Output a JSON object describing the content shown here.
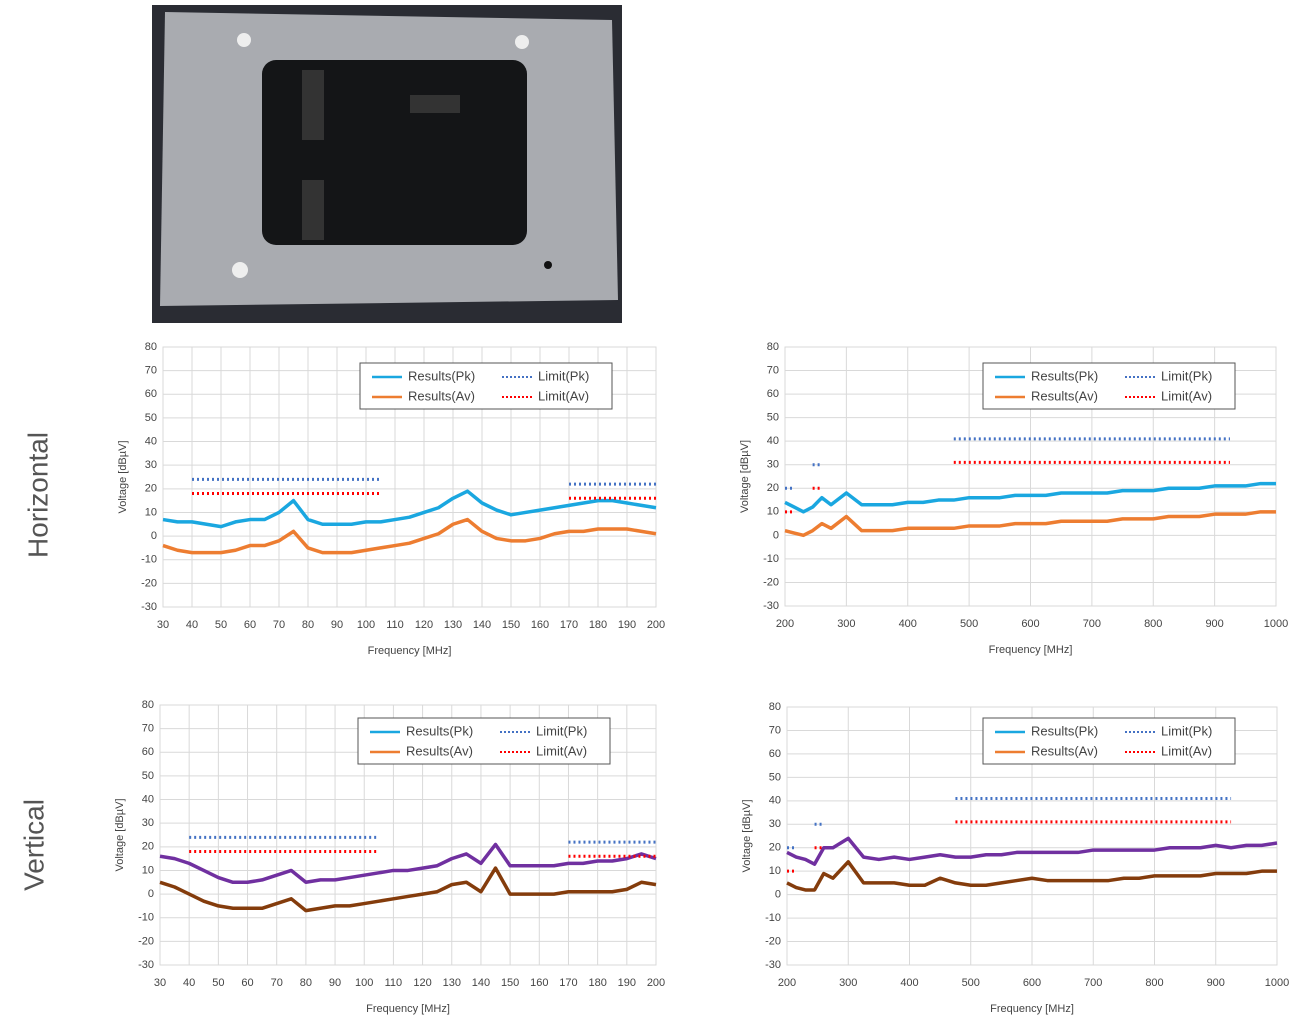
{
  "row_labels": [
    "Horizontal",
    "Vertical"
  ],
  "chart_data": [
    {
      "type": "line",
      "xlabel": "Frequency [MHz]",
      "ylabel": "Voltage [dBµV]",
      "grid": true,
      "xlim": [
        30,
        200
      ],
      "ylim": [
        -30,
        80
      ],
      "xticks": [
        30,
        40,
        50,
        60,
        70,
        80,
        90,
        100,
        110,
        120,
        130,
        140,
        150,
        160,
        170,
        180,
        190,
        200
      ],
      "yticks": [
        -30,
        -20,
        -10,
        0,
        10,
        20,
        30,
        40,
        50,
        60,
        70,
        80
      ],
      "x": [
        30,
        35,
        40,
        45,
        50,
        55,
        60,
        65,
        70,
        75,
        80,
        85,
        90,
        95,
        100,
        105,
        110,
        115,
        120,
        125,
        130,
        135,
        140,
        145,
        150,
        155,
        160,
        165,
        170,
        175,
        180,
        185,
        190,
        195,
        200
      ],
      "series": [
        {
          "name": "Results(Pk)",
          "color": "#1aa7e0",
          "legend_color": "#1aa7e0",
          "style": "solid",
          "values": [
            7,
            6,
            6,
            5,
            4,
            6,
            7,
            7,
            10,
            15,
            7,
            5,
            5,
            5,
            6,
            6,
            7,
            8,
            10,
            12,
            16,
            19,
            14,
            11,
            9,
            10,
            11,
            12,
            13,
            14,
            15,
            15,
            14,
            13,
            12
          ]
        },
        {
          "name": "Results(Av)",
          "color": "#ed7d31",
          "legend_color": "#ed7d31",
          "style": "solid",
          "values": [
            -4,
            -6,
            -7,
            -7,
            -7,
            -6,
            -4,
            -4,
            -2,
            2,
            -5,
            -7,
            -7,
            -7,
            -6,
            -5,
            -4,
            -3,
            -1,
            1,
            5,
            7,
            2,
            -1,
            -2,
            -2,
            -1,
            1,
            2,
            2,
            3,
            3,
            3,
            2,
            1
          ]
        },
        {
          "name": "Limit(Pk)",
          "color": "#4472c4",
          "legend_color": "#4472c4",
          "style": "dotted",
          "values": [
            null,
            null,
            24,
            24,
            24,
            24,
            24,
            24,
            24,
            24,
            24,
            24,
            24,
            24,
            24,
            24,
            null,
            null,
            null,
            null,
            null,
            null,
            null,
            null,
            null,
            null,
            null,
            null,
            22,
            22,
            22,
            22,
            22,
            22,
            22
          ]
        },
        {
          "name": "Limit(Av)",
          "color": "#ff0000",
          "legend_color": "#ff0000",
          "style": "dotted",
          "values": [
            null,
            null,
            18,
            18,
            18,
            18,
            18,
            18,
            18,
            18,
            18,
            18,
            18,
            18,
            18,
            18,
            null,
            null,
            null,
            null,
            null,
            null,
            null,
            null,
            null,
            null,
            null,
            null,
            16,
            16,
            16,
            16,
            16,
            16,
            16
          ]
        }
      ]
    },
    {
      "type": "line",
      "xlabel": "Frequency [MHz]",
      "ylabel": "Voltage [dBµV]",
      "grid": true,
      "xlim": [
        200,
        1000
      ],
      "ylim": [
        -30,
        80
      ],
      "xticks": [
        200,
        300,
        400,
        500,
        600,
        700,
        800,
        900,
        1000
      ],
      "yticks": [
        -30,
        -20,
        -10,
        0,
        10,
        20,
        30,
        40,
        50,
        60,
        70,
        80
      ],
      "x": [
        200,
        215,
        230,
        245,
        260,
        275,
        300,
        325,
        350,
        375,
        400,
        425,
        450,
        475,
        500,
        525,
        550,
        575,
        600,
        625,
        650,
        675,
        700,
        725,
        750,
        775,
        800,
        825,
        850,
        875,
        900,
        925,
        950,
        975,
        1000
      ],
      "series": [
        {
          "name": "Results(Pk)",
          "color": "#1aa7e0",
          "legend_color": "#1aa7e0",
          "style": "solid",
          "values": [
            14,
            12,
            10,
            12,
            16,
            13,
            18,
            13,
            13,
            13,
            14,
            14,
            15,
            15,
            16,
            16,
            16,
            17,
            17,
            17,
            18,
            18,
            18,
            18,
            19,
            19,
            19,
            20,
            20,
            20,
            21,
            21,
            21,
            22,
            22
          ]
        },
        {
          "name": "Results(Av)",
          "color": "#ed7d31",
          "legend_color": "#ed7d31",
          "style": "solid",
          "values": [
            2,
            1,
            0,
            2,
            5,
            3,
            8,
            2,
            2,
            2,
            3,
            3,
            3,
            3,
            4,
            4,
            4,
            5,
            5,
            5,
            6,
            6,
            6,
            6,
            7,
            7,
            7,
            8,
            8,
            8,
            9,
            9,
            9,
            10,
            10
          ]
        },
        {
          "name": "Limit(Pk)",
          "color": "#4472c4",
          "legend_color": "#4472c4",
          "style": "dotted",
          "values": [
            20,
            20,
            null,
            30,
            30,
            null,
            null,
            null,
            null,
            null,
            null,
            null,
            null,
            41,
            41,
            41,
            41,
            41,
            41,
            41,
            41,
            41,
            41,
            41,
            41,
            41,
            41,
            41,
            41,
            41,
            41,
            41,
            null,
            null,
            null
          ]
        },
        {
          "name": "Limit(Av)",
          "color": "#ff0000",
          "legend_color": "#ff0000",
          "style": "dotted",
          "values": [
            10,
            10,
            null,
            20,
            20,
            null,
            null,
            null,
            null,
            null,
            null,
            null,
            null,
            31,
            31,
            31,
            31,
            31,
            31,
            31,
            31,
            31,
            31,
            31,
            31,
            31,
            31,
            31,
            31,
            31,
            31,
            31,
            null,
            null,
            null
          ]
        }
      ]
    },
    {
      "type": "line",
      "xlabel": "Frequency [MHz]",
      "ylabel": "Voltage [dBµV]",
      "grid": true,
      "xlim": [
        30,
        200
      ],
      "ylim": [
        -30,
        80
      ],
      "xticks": [
        30,
        40,
        50,
        60,
        70,
        80,
        90,
        100,
        110,
        120,
        130,
        140,
        150,
        160,
        170,
        180,
        190,
        200
      ],
      "yticks": [
        -30,
        -20,
        -10,
        0,
        10,
        20,
        30,
        40,
        50,
        60,
        70,
        80
      ],
      "x": [
        30,
        35,
        40,
        45,
        50,
        55,
        60,
        65,
        70,
        75,
        80,
        85,
        90,
        95,
        100,
        105,
        110,
        115,
        120,
        125,
        130,
        135,
        140,
        145,
        150,
        155,
        160,
        165,
        170,
        175,
        180,
        185,
        190,
        195,
        200
      ],
      "series": [
        {
          "name": "Results(Pk)",
          "color": "#7030a0",
          "legend_color": "#1aa7e0",
          "style": "solid",
          "values": [
            16,
            15,
            13,
            10,
            7,
            5,
            5,
            6,
            8,
            10,
            5,
            6,
            6,
            7,
            8,
            9,
            10,
            10,
            11,
            12,
            15,
            17,
            13,
            21,
            12,
            12,
            12,
            12,
            13,
            13,
            14,
            14,
            15,
            17,
            15
          ]
        },
        {
          "name": "Results(Av)",
          "color": "#843c0c",
          "legend_color": "#ed7d31",
          "style": "solid",
          "values": [
            5,
            3,
            0,
            -3,
            -5,
            -6,
            -6,
            -6,
            -4,
            -2,
            -7,
            -6,
            -5,
            -5,
            -4,
            -3,
            -2,
            -1,
            0,
            1,
            4,
            5,
            1,
            11,
            0,
            0,
            0,
            0,
            1,
            1,
            1,
            1,
            2,
            5,
            4
          ]
        },
        {
          "name": "Limit(Pk)",
          "color": "#4472c4",
          "legend_color": "#4472c4",
          "style": "dotted",
          "values": [
            null,
            null,
            24,
            24,
            24,
            24,
            24,
            24,
            24,
            24,
            24,
            24,
            24,
            24,
            24,
            24,
            null,
            null,
            null,
            null,
            null,
            null,
            null,
            null,
            null,
            null,
            null,
            null,
            22,
            22,
            22,
            22,
            22,
            22,
            22
          ]
        },
        {
          "name": "Limit(Av)",
          "color": "#ff0000",
          "legend_color": "#ff0000",
          "style": "dotted",
          "values": [
            null,
            null,
            18,
            18,
            18,
            18,
            18,
            18,
            18,
            18,
            18,
            18,
            18,
            18,
            18,
            18,
            null,
            null,
            null,
            null,
            null,
            null,
            null,
            null,
            null,
            null,
            null,
            null,
            16,
            16,
            16,
            16,
            16,
            16,
            16
          ]
        }
      ]
    },
    {
      "type": "line",
      "xlabel": "Frequency [MHz]",
      "ylabel": "Voltage [dBµV]",
      "grid": true,
      "xlim": [
        200,
        1000
      ],
      "ylim": [
        -30,
        80
      ],
      "xticks": [
        200,
        300,
        400,
        500,
        600,
        700,
        800,
        900,
        1000
      ],
      "yticks": [
        -30,
        -20,
        -10,
        0,
        10,
        20,
        30,
        40,
        50,
        60,
        70,
        80
      ],
      "x": [
        200,
        215,
        230,
        245,
        260,
        275,
        300,
        325,
        350,
        375,
        400,
        425,
        450,
        475,
        500,
        525,
        550,
        575,
        600,
        625,
        650,
        675,
        700,
        725,
        750,
        775,
        800,
        825,
        850,
        875,
        900,
        925,
        950,
        975,
        1000
      ],
      "series": [
        {
          "name": "Results(Pk)",
          "color": "#7030a0",
          "legend_color": "#1aa7e0",
          "style": "solid",
          "values": [
            18,
            16,
            15,
            13,
            20,
            20,
            24,
            16,
            15,
            16,
            15,
            16,
            17,
            16,
            16,
            17,
            17,
            18,
            18,
            18,
            18,
            18,
            19,
            19,
            19,
            19,
            19,
            20,
            20,
            20,
            21,
            20,
            21,
            21,
            22
          ]
        },
        {
          "name": "Results(Av)",
          "color": "#843c0c",
          "legend_color": "#ed7d31",
          "style": "solid",
          "values": [
            5,
            3,
            2,
            2,
            9,
            7,
            14,
            5,
            5,
            5,
            4,
            4,
            7,
            5,
            4,
            4,
            5,
            6,
            7,
            6,
            6,
            6,
            6,
            6,
            7,
            7,
            8,
            8,
            8,
            8,
            9,
            9,
            9,
            10,
            10
          ]
        },
        {
          "name": "Limit(Pk)",
          "color": "#4472c4",
          "legend_color": "#4472c4",
          "style": "dotted",
          "values": [
            20,
            20,
            null,
            30,
            30,
            null,
            null,
            null,
            null,
            null,
            null,
            null,
            null,
            41,
            41,
            41,
            41,
            41,
            41,
            41,
            41,
            41,
            41,
            41,
            41,
            41,
            41,
            41,
            41,
            41,
            41,
            41,
            null,
            null,
            null
          ]
        },
        {
          "name": "Limit(Av)",
          "color": "#ff0000",
          "legend_color": "#ff0000",
          "style": "dotted",
          "values": [
            10,
            10,
            null,
            20,
            20,
            null,
            null,
            null,
            null,
            null,
            null,
            null,
            null,
            31,
            31,
            31,
            31,
            31,
            31,
            31,
            31,
            31,
            31,
            31,
            31,
            31,
            31,
            31,
            31,
            31,
            31,
            31,
            null,
            null,
            null
          ]
        }
      ]
    }
  ]
}
